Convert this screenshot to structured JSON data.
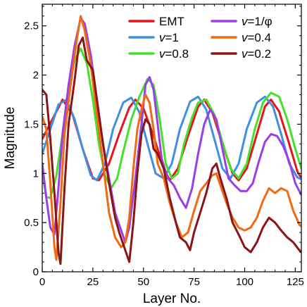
{
  "chart_data": {
    "type": "line",
    "title": "",
    "xlabel": "Layer No.",
    "ylabel": "Magnitude",
    "xlim": [
      0,
      128
    ],
    "ylim": [
      0,
      2.72
    ],
    "xticks": [
      0,
      25,
      50,
      75,
      100,
      125
    ],
    "yticks": [
      0,
      0.5,
      1,
      1.5,
      2,
      2.5
    ],
    "xtick_labels": [
      "0",
      "25",
      "50",
      "75",
      "100",
      "125"
    ],
    "ytick_labels": [
      "0",
      "0.5",
      "1",
      "1.5",
      "2",
      "2.5"
    ],
    "grid": false,
    "legend_position": "top-right",
    "series": [
      {
        "name": "EMT",
        "legend_label": {
          "prefix": "",
          "italic": "",
          "suffix": "EMT"
        },
        "color": "#e8141c",
        "points": [
          [
            0,
            1.35
          ],
          [
            5,
            1.55
          ],
          [
            10,
            1.75
          ],
          [
            15,
            1.6
          ],
          [
            20,
            1.25
          ],
          [
            25,
            0.95
          ],
          [
            28,
            0.93
          ],
          [
            33,
            1.1
          ],
          [
            38,
            1.4
          ],
          [
            43,
            1.67
          ],
          [
            46,
            1.75
          ],
          [
            50,
            1.66
          ],
          [
            55,
            1.38
          ],
          [
            60,
            1.05
          ],
          [
            63,
            0.93
          ],
          [
            67,
            1.05
          ],
          [
            72,
            1.38
          ],
          [
            77,
            1.68
          ],
          [
            80,
            1.75
          ],
          [
            84,
            1.62
          ],
          [
            89,
            1.3
          ],
          [
            94,
            1.0
          ],
          [
            97,
            0.93
          ],
          [
            101,
            1.05
          ],
          [
            106,
            1.4
          ],
          [
            110,
            1.68
          ],
          [
            113,
            1.75
          ],
          [
            117,
            1.63
          ],
          [
            122,
            1.3
          ],
          [
            126,
            1.02
          ],
          [
            128,
            0.95
          ]
        ]
      },
      {
        "name": "v=1",
        "legend_label": {
          "prefix": "",
          "italic": "v",
          "suffix": "=1"
        },
        "color": "#3f8fe6",
        "points": [
          [
            0,
            1.2
          ],
          [
            4,
            1.45
          ],
          [
            8,
            1.7
          ],
          [
            12,
            1.75
          ],
          [
            16,
            1.55
          ],
          [
            20,
            1.25
          ],
          [
            24,
            0.98
          ],
          [
            27,
            0.93
          ],
          [
            31,
            1.1
          ],
          [
            35,
            1.45
          ],
          [
            40,
            1.72
          ],
          [
            44,
            1.77
          ],
          [
            48,
            1.62
          ],
          [
            52,
            1.3
          ],
          [
            56,
            1.0
          ],
          [
            60,
            0.95
          ],
          [
            64,
            1.1
          ],
          [
            68,
            1.45
          ],
          [
            73,
            1.73
          ],
          [
            77,
            1.78
          ],
          [
            81,
            1.65
          ],
          [
            85,
            1.35
          ],
          [
            89,
            1.05
          ],
          [
            93,
            0.95
          ],
          [
            97,
            1.1
          ],
          [
            101,
            1.45
          ],
          [
            106,
            1.72
          ],
          [
            110,
            1.78
          ],
          [
            114,
            1.68
          ],
          [
            118,
            1.4
          ],
          [
            122,
            1.1
          ],
          [
            126,
            0.96
          ],
          [
            128,
            0.94
          ]
        ]
      },
      {
        "name": "v=0.8",
        "legend_label": {
          "prefix": "",
          "italic": "v",
          "suffix": "=0.8"
        },
        "color": "#44e02a",
        "points": [
          [
            0,
            1.0
          ],
          [
            2,
            0.76
          ],
          [
            4,
            0.75
          ],
          [
            7,
            0.98
          ],
          [
            10,
            1.4
          ],
          [
            13,
            1.85
          ],
          [
            16,
            2.15
          ],
          [
            19,
            2.27
          ],
          [
            22,
            2.12
          ],
          [
            25,
            1.75
          ],
          [
            28,
            1.3
          ],
          [
            31,
            0.98
          ],
          [
            34,
            0.85
          ],
          [
            37,
            0.95
          ],
          [
            40,
            1.22
          ],
          [
            44,
            1.55
          ],
          [
            48,
            1.78
          ],
          [
            52,
            1.96
          ],
          [
            55,
            1.9
          ],
          [
            58,
            1.55
          ],
          [
            61,
            1.1
          ],
          [
            64,
            0.95
          ],
          [
            67,
            1.0
          ],
          [
            70,
            1.3
          ],
          [
            74,
            1.57
          ],
          [
            77,
            1.72
          ],
          [
            81,
            1.75
          ],
          [
            85,
            1.6
          ],
          [
            89,
            1.32
          ],
          [
            93,
            1.05
          ],
          [
            97,
            0.95
          ],
          [
            101,
            1.1
          ],
          [
            105,
            1.45
          ],
          [
            109,
            1.72
          ],
          [
            113,
            1.82
          ],
          [
            117,
            1.78
          ],
          [
            121,
            1.55
          ],
          [
            125,
            1.25
          ],
          [
            128,
            1.05
          ]
        ]
      },
      {
        "name": "v=1/φ",
        "legend_label": {
          "prefix": "",
          "italic": "v",
          "suffix": "=1/φ"
        },
        "color": "#9a3ee8",
        "points": [
          [
            0,
            1.1
          ],
          [
            2,
            0.75
          ],
          [
            4,
            0.45
          ],
          [
            6,
            0.38
          ],
          [
            8,
            0.85
          ],
          [
            10,
            1.4
          ],
          [
            13,
            1.9
          ],
          [
            16,
            2.3
          ],
          [
            19,
            2.58
          ],
          [
            21,
            2.52
          ],
          [
            24,
            2.2
          ],
          [
            27,
            1.75
          ],
          [
            30,
            1.3
          ],
          [
            33,
            0.95
          ],
          [
            36,
            0.6
          ],
          [
            39,
            0.42
          ],
          [
            41,
            0.3
          ],
          [
            43,
            0.45
          ],
          [
            46,
            0.95
          ],
          [
            49,
            1.5
          ],
          [
            51,
            1.9
          ],
          [
            53,
            1.98
          ],
          [
            55,
            1.85
          ],
          [
            57,
            1.5
          ],
          [
            59,
            1.15
          ],
          [
            62,
            0.95
          ],
          [
            65,
            0.88
          ],
          [
            68,
            0.75
          ],
          [
            71,
            0.65
          ],
          [
            74,
            0.85
          ],
          [
            77,
            1.2
          ],
          [
            80,
            1.5
          ],
          [
            83,
            1.65
          ],
          [
            86,
            1.55
          ],
          [
            89,
            1.25
          ],
          [
            92,
            0.95
          ],
          [
            95,
            0.88
          ],
          [
            98,
            0.82
          ],
          [
            101,
            0.82
          ],
          [
            104,
            0.9
          ],
          [
            107,
            1.12
          ],
          [
            110,
            1.32
          ],
          [
            113,
            1.4
          ],
          [
            116,
            1.38
          ],
          [
            119,
            1.28
          ],
          [
            122,
            1.12
          ],
          [
            125,
            0.9
          ],
          [
            128,
            0.78
          ]
        ]
      },
      {
        "name": "v=0.4",
        "legend_label": {
          "prefix": "",
          "italic": "v",
          "suffix": "=0.4"
        },
        "color": "#f06a12",
        "points": [
          [
            0,
            1.58
          ],
          [
            2,
            1.45
          ],
          [
            4,
            0.9
          ],
          [
            6,
            0.25
          ],
          [
            7,
            0.12
          ],
          [
            9,
            0.7
          ],
          [
            11,
            1.4
          ],
          [
            14,
            1.9
          ],
          [
            17,
            2.35
          ],
          [
            19,
            2.6
          ],
          [
            21,
            2.45
          ],
          [
            24,
            2.1
          ],
          [
            27,
            1.6
          ],
          [
            30,
            1.1
          ],
          [
            33,
            0.6
          ],
          [
            36,
            0.35
          ],
          [
            39,
            0.25
          ],
          [
            41,
            0.3
          ],
          [
            43,
            0.55
          ],
          [
            45,
            1.05
          ],
          [
            47,
            1.45
          ],
          [
            49,
            1.65
          ],
          [
            51,
            1.8
          ],
          [
            53,
            1.72
          ],
          [
            55,
            1.45
          ],
          [
            57,
            1.1
          ],
          [
            60,
            0.95
          ],
          [
            63,
            0.7
          ],
          [
            66,
            0.5
          ],
          [
            69,
            0.35
          ],
          [
            72,
            0.4
          ],
          [
            75,
            0.62
          ],
          [
            78,
            0.82
          ],
          [
            81,
            0.9
          ],
          [
            84,
            0.98
          ],
          [
            86,
            1.0
          ],
          [
            88,
            0.88
          ],
          [
            91,
            0.7
          ],
          [
            94,
            0.55
          ],
          [
            97,
            0.45
          ],
          [
            100,
            0.42
          ],
          [
            103,
            0.45
          ],
          [
            106,
            0.55
          ],
          [
            109,
            0.72
          ],
          [
            112,
            0.85
          ],
          [
            115,
            0.8
          ],
          [
            118,
            0.85
          ],
          [
            121,
            0.82
          ],
          [
            124,
            0.62
          ],
          [
            127,
            0.48
          ],
          [
            128,
            0.46
          ]
        ]
      },
      {
        "name": "v=0.2",
        "legend_label": {
          "prefix": "",
          "italic": "v",
          "suffix": "=0.2"
        },
        "color": "#8b1414",
        "points": [
          [
            0,
            1.85
          ],
          [
            2,
            1.8
          ],
          [
            4,
            1.35
          ],
          [
            6,
            0.8
          ],
          [
            8,
            0.2
          ],
          [
            9,
            0.08
          ],
          [
            11,
            0.85
          ],
          [
            13,
            1.5
          ],
          [
            16,
            1.95
          ],
          [
            18,
            2.3
          ],
          [
            20,
            2.38
          ],
          [
            22,
            2.15
          ],
          [
            25,
            2.05
          ],
          [
            27,
            1.75
          ],
          [
            30,
            1.3
          ],
          [
            33,
            0.9
          ],
          [
            36,
            0.55
          ],
          [
            38,
            0.4
          ],
          [
            41,
            0.22
          ],
          [
            43,
            0.1
          ],
          [
            45,
            0.5
          ],
          [
            47,
            1.0
          ],
          [
            49,
            1.4
          ],
          [
            51,
            1.55
          ],
          [
            53,
            1.5
          ],
          [
            55,
            1.25
          ],
          [
            57,
            1.2
          ],
          [
            60,
            1.05
          ],
          [
            63,
            0.75
          ],
          [
            66,
            0.5
          ],
          [
            68,
            0.35
          ],
          [
            71,
            0.3
          ],
          [
            73,
            0.22
          ],
          [
            75,
            0.4
          ],
          [
            78,
            0.6
          ],
          [
            81,
            0.8
          ],
          [
            84,
            1.05
          ],
          [
            86,
            1.1
          ],
          [
            88,
            0.95
          ],
          [
            91,
            0.75
          ],
          [
            94,
            0.5
          ],
          [
            97,
            0.38
          ],
          [
            100,
            0.25
          ],
          [
            103,
            0.2
          ],
          [
            106,
            0.3
          ],
          [
            109,
            0.45
          ],
          [
            112,
            0.55
          ],
          [
            115,
            0.5
          ],
          [
            118,
            0.42
          ],
          [
            121,
            0.35
          ],
          [
            124,
            0.3
          ],
          [
            127,
            0.22
          ],
          [
            128,
            0.2
          ]
        ]
      }
    ]
  }
}
